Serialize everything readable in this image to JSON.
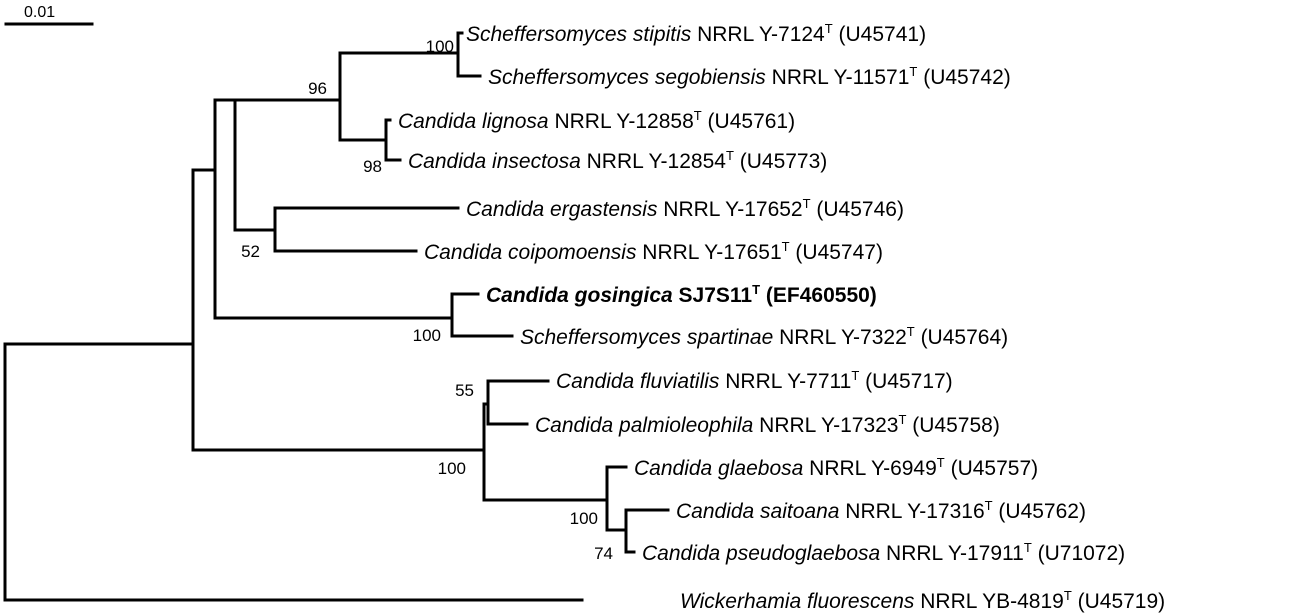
{
  "scale_bar": {
    "label": "0.01"
  },
  "taxa": [
    {
      "id": "stipitis",
      "genus": "Scheffersomyces",
      "species": "stipitis",
      "strain": "NRRL Y-7124",
      "sup": "T",
      "accession": "(U45741)",
      "bold": false
    },
    {
      "id": "segobiensis",
      "genus": "Scheffersomyces",
      "species": "segobiensis",
      "strain": "NRRL Y-11571",
      "sup": "T",
      "accession": "(U45742)",
      "bold": false
    },
    {
      "id": "lignosa",
      "genus": "Candida",
      "species": "lignosa",
      "strain": "NRRL Y-12858",
      "sup": "T",
      "accession": "(U45761)",
      "bold": false
    },
    {
      "id": "insectosa",
      "genus": "Candida",
      "species": "insectosa",
      "strain": "NRRL Y-12854",
      "sup": "T",
      "accession": "(U45773)",
      "bold": false
    },
    {
      "id": "ergastensis",
      "genus": "Candida",
      "species": "ergastensis",
      "strain": "NRRL Y-17652",
      "sup": "T",
      "accession": "(U45746)",
      "bold": false
    },
    {
      "id": "coipomoensis",
      "genus": "Candida",
      "species": "coipomoensis",
      "strain": "NRRL Y-17651",
      "sup": "T",
      "accession": "(U45747)",
      "bold": false
    },
    {
      "id": "gosingica",
      "genus": "Candida",
      "species": "gosingica",
      "strain": "SJ7S11",
      "sup": "T",
      "accession": "(EF460550)",
      "bold": true
    },
    {
      "id": "spartinae",
      "genus": "Scheffersomyces",
      "species": "spartinae",
      "strain": "NRRL Y-7322",
      "sup": "T",
      "accession": "(U45764)",
      "bold": false
    },
    {
      "id": "fluviatilis",
      "genus": "Candida",
      "species": "fluviatilis",
      "strain": "NRRL Y-7711",
      "sup": "T",
      "accession": "(U45717)",
      "bold": false
    },
    {
      "id": "palmioleophila",
      "genus": "Candida",
      "species": "palmioleophila",
      "strain": "NRRL Y-17323",
      "sup": "T",
      "accession": "(U45758)",
      "bold": false
    },
    {
      "id": "glaebosa",
      "genus": "Candida",
      "species": "glaebosa",
      "strain": "NRRL Y-6949",
      "sup": "T",
      "accession": "(U45757)",
      "bold": false
    },
    {
      "id": "saitoana",
      "genus": "Candida",
      "species": "saitoana",
      "strain": "NRRL Y-17316",
      "sup": "T",
      "accession": "(U45762)",
      "bold": false
    },
    {
      "id": "pseudoglaebosa",
      "genus": "Candida",
      "species": "pseudoglaebosa",
      "strain": "NRRL Y-17911",
      "sup": "T",
      "accession": "(U71072)",
      "bold": false
    },
    {
      "id": "wickerhamia",
      "genus": "Wickerhamia",
      "species": "fluorescens",
      "strain": "NRRL YB-4819",
      "sup": "T",
      "accession": "(U45719)",
      "bold": false
    }
  ],
  "bootstrap": {
    "stipitis_segobiensis": "100",
    "scheff_lignosa_group": "96",
    "lignosa_insectosa": "98",
    "ergastensis_coipomoensis": "52",
    "gosingica_spartinae": "100",
    "fluviatilis_palmioleophila": "55",
    "lower_clade": "100",
    "glaebosa_group": "100",
    "saitoana_pseudoglaebosa": "74"
  }
}
